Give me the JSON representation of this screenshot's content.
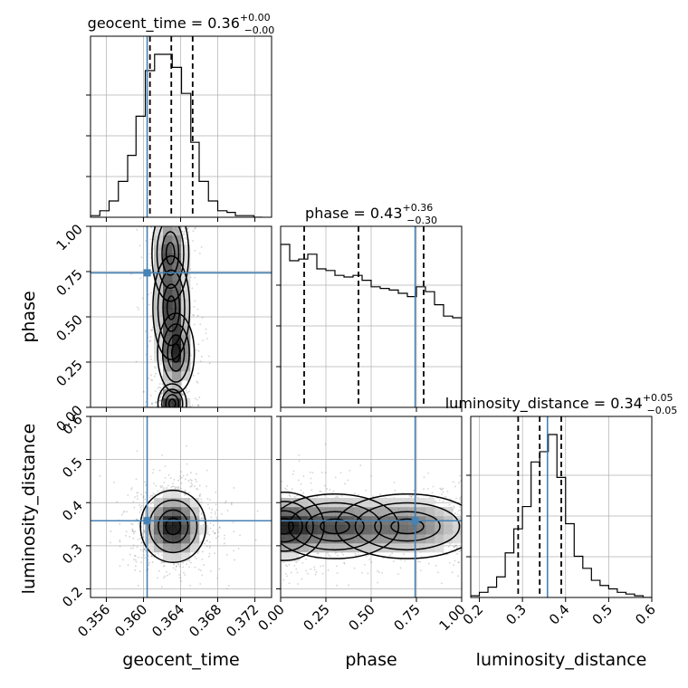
{
  "chart_data": {
    "type": "corner",
    "params": [
      "geocent_time",
      "phase",
      "luminosity_distance"
    ],
    "truths": {
      "geocent_time": 0.3604,
      "phase": 0.743,
      "luminosity_distance": 0.358
    },
    "axes": {
      "geocent_time": {
        "range": [
          0.3543,
          0.3738
        ],
        "ticks": [
          "0.356",
          "0.360",
          "0.364",
          "0.368",
          "0.372"
        ],
        "tick_values": [
          0.356,
          0.36,
          0.364,
          0.368,
          0.372
        ],
        "label": "geocent_time"
      },
      "phase": {
        "range": [
          0.0,
          1.0
        ],
        "ticks": [
          "0.00",
          "0.25",
          "0.50",
          "0.75",
          "1.00"
        ],
        "tick_values": [
          0.0,
          0.25,
          0.5,
          0.75,
          1.0
        ],
        "label": "phase"
      },
      "luminosity_distance": {
        "range": [
          0.18,
          0.6
        ],
        "ticks": [
          "0.2",
          "0.3",
          "0.4",
          "0.5",
          "0.6"
        ],
        "tick_values": [
          0.2,
          0.3,
          0.4,
          0.5,
          0.6
        ],
        "label": "luminosity_distance"
      }
    },
    "titles": [
      {
        "param": "geocent_time",
        "name": "geocent_time",
        "median": "0.36",
        "plus": "+0.00",
        "minus": "−0.00"
      },
      {
        "param": "phase",
        "name": "phase",
        "median": "0.43",
        "plus": "+0.36",
        "minus": "−0.30"
      },
      {
        "param": "luminosity_distance",
        "name": "luminosity_distance",
        "median": "0.34",
        "plus": "+0.05",
        "minus": "−0.05"
      }
    ],
    "histograms": {
      "geocent_time": {
        "bin_edges": [
          0.3543,
          0.3553,
          0.3563,
          0.3573,
          0.3583,
          0.3592,
          0.3602,
          0.3612,
          0.3621,
          0.3631,
          0.3641,
          0.3651,
          0.366,
          0.367,
          0.368,
          0.369,
          0.3699,
          0.3709,
          0.3719,
          0.3728
        ],
        "counts": [
          0.01,
          0.04,
          0.1,
          0.22,
          0.38,
          0.62,
          0.9,
          1.0,
          1.0,
          0.92,
          0.76,
          0.46,
          0.22,
          0.1,
          0.04,
          0.03,
          0.01,
          0.01,
          0.0
        ],
        "quantiles": [
          0.3607,
          0.363,
          0.3653
        ]
      },
      "phase": {
        "bin_edges": [
          0.0,
          0.05,
          0.1,
          0.15,
          0.2,
          0.25,
          0.3,
          0.35,
          0.4,
          0.45,
          0.5,
          0.55,
          0.6,
          0.65,
          0.7,
          0.75,
          0.8,
          0.85,
          0.9,
          0.95,
          1.0
        ],
        "counts": [
          1.0,
          0.9,
          0.91,
          0.94,
          0.85,
          0.84,
          0.81,
          0.8,
          0.81,
          0.78,
          0.74,
          0.73,
          0.72,
          0.7,
          0.68,
          0.74,
          0.71,
          0.63,
          0.56,
          0.55
        ],
        "quantiles": [
          0.13,
          0.43,
          0.79
        ]
      },
      "luminosity_distance": {
        "bin_edges": [
          0.18,
          0.2,
          0.22,
          0.24,
          0.26,
          0.28,
          0.3,
          0.32,
          0.34,
          0.36,
          0.38,
          0.4,
          0.42,
          0.44,
          0.46,
          0.48,
          0.5,
          0.52,
          0.54,
          0.56,
          0.58,
          0.6
        ],
        "counts": [
          0.01,
          0.03,
          0.06,
          0.12,
          0.26,
          0.4,
          0.53,
          0.79,
          0.85,
          0.95,
          0.7,
          0.43,
          0.24,
          0.17,
          0.1,
          0.07,
          0.05,
          0.03,
          0.02,
          0.01,
          0.0
        ],
        "quantiles": [
          0.29,
          0.34,
          0.39
        ]
      }
    },
    "joint": [
      {
        "x": "geocent_time",
        "y": "phase",
        "density_centers": [
          {
            "x": 0.3631,
            "y": 0.02,
            "sx": 0.0007,
            "sy": 0.05,
            "w": 1.0
          },
          {
            "x": 0.3635,
            "y": 0.3,
            "sx": 0.0009,
            "sy": 0.1,
            "w": 0.85
          },
          {
            "x": 0.363,
            "y": 0.55,
            "sx": 0.0009,
            "sy": 0.13,
            "w": 0.8
          },
          {
            "x": 0.3629,
            "y": 0.85,
            "sx": 0.0009,
            "sy": 0.12,
            "w": 0.7
          }
        ]
      },
      {
        "x": "geocent_time",
        "y": "luminosity_distance",
        "density_centers": [
          {
            "x": 0.3632,
            "y": 0.345,
            "sx": 0.0016,
            "sy": 0.038,
            "w": 1.0
          }
        ]
      },
      {
        "x": "phase",
        "y": "luminosity_distance",
        "density_centers": [
          {
            "x": 0.02,
            "y": 0.345,
            "sx": 0.1,
            "sy": 0.036,
            "w": 1.0
          },
          {
            "x": 0.3,
            "y": 0.345,
            "sx": 0.16,
            "sy": 0.034,
            "w": 0.85
          },
          {
            "x": 0.7,
            "y": 0.345,
            "sx": 0.18,
            "sy": 0.034,
            "w": 0.7
          }
        ]
      }
    ],
    "colors": {
      "truth": "#4682b4",
      "hist": "#000000",
      "grid": "#b0b0b0",
      "density": "#000000",
      "scatter": "#808080"
    },
    "grid": true
  }
}
